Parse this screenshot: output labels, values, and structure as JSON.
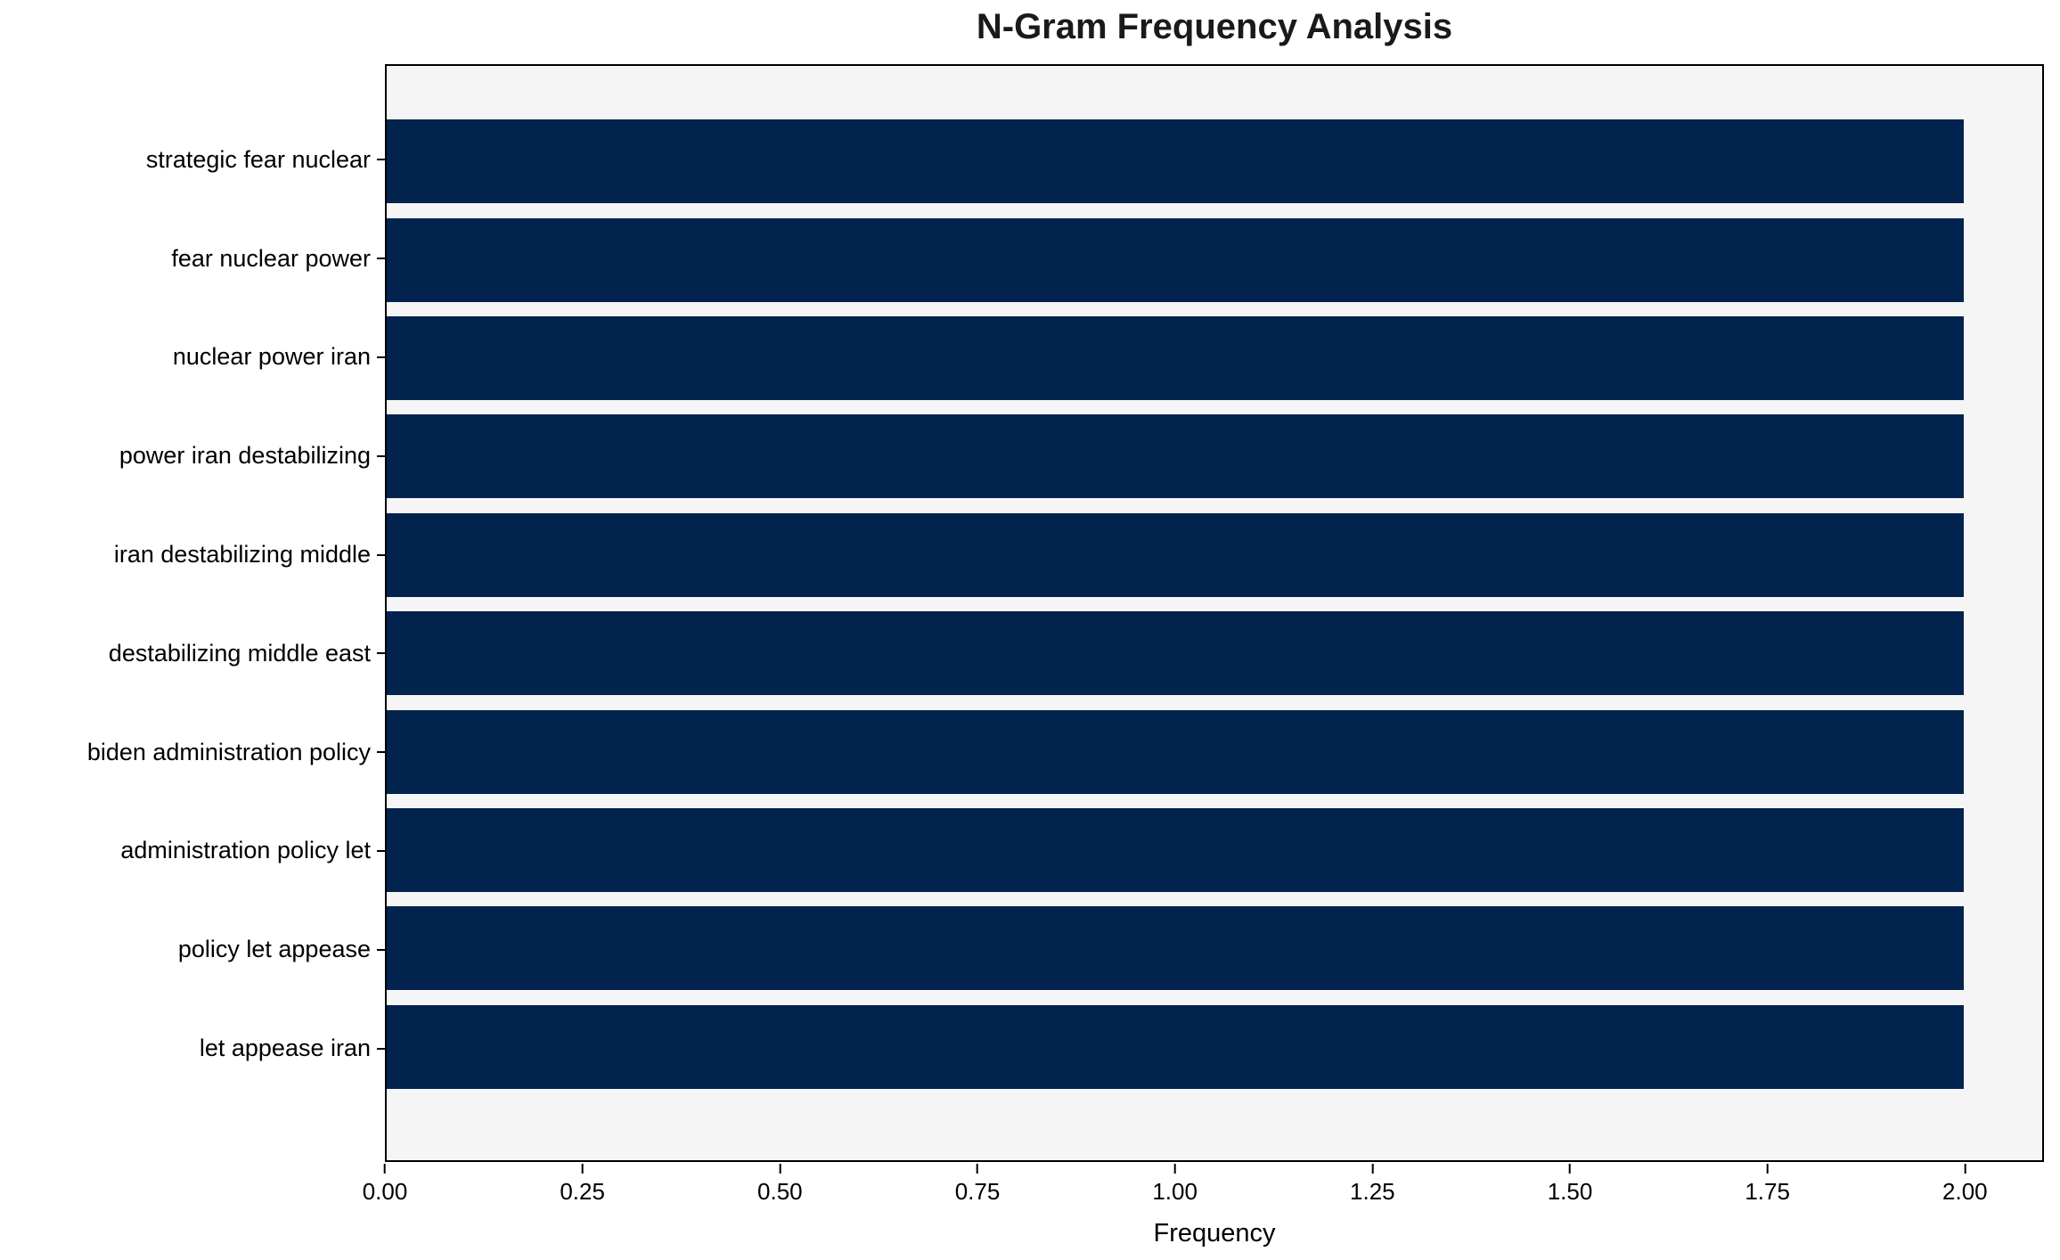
{
  "figure": {
    "background_color": "#ffffff",
    "plot_background_color": "#f5f5f5",
    "spine_color": "#000000",
    "bar_color": "#02234d"
  },
  "chart_data": {
    "type": "bar",
    "orientation": "horizontal",
    "title": "N-Gram Frequency Analysis",
    "xlabel": "Frequency",
    "ylabel": "",
    "categories": [
      "strategic fear nuclear",
      "fear nuclear power",
      "nuclear power iran",
      "power iran destabilizing",
      "iran destabilizing middle",
      "destabilizing middle east",
      "biden administration policy",
      "administration policy let",
      "policy let appease",
      "let appease iran"
    ],
    "values": [
      2,
      2,
      2,
      2,
      2,
      2,
      2,
      2,
      2,
      2
    ],
    "xlim": [
      0,
      2.1
    ],
    "xticks": [
      0,
      0.25,
      0.5,
      0.75,
      1.0,
      1.25,
      1.5,
      1.75,
      2.0
    ],
    "xtick_labels": [
      "0.00",
      "0.25",
      "0.50",
      "0.75",
      "1.00",
      "1.25",
      "1.50",
      "1.75",
      "2.00"
    ],
    "grid": false,
    "legend_position": "none",
    "bar_color": "#02234d"
  }
}
